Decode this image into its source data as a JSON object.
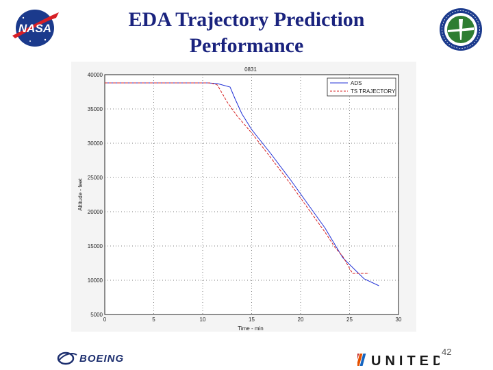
{
  "slide": {
    "title": "EDA Trajectory Prediction Performance",
    "page_number": "42"
  },
  "logos": {
    "nasa": "NASA",
    "boeing": "BOEING",
    "united": "UNITED"
  },
  "colors": {
    "title": "#1a237e",
    "ads_series": "#1f2fd6",
    "ts_series": "#d62020",
    "grid": "#555555"
  },
  "chart_data": {
    "type": "line",
    "title": "0831",
    "xlabel": "Time - min",
    "ylabel": "Altitude - feet",
    "xlim": [
      0,
      30
    ],
    "ylim": [
      5000,
      40000
    ],
    "xticks": [
      0,
      5,
      10,
      15,
      20,
      25,
      30
    ],
    "yticks": [
      5000,
      10000,
      15000,
      20000,
      25000,
      30000,
      35000,
      40000
    ],
    "grid": true,
    "legend_position": "top-right",
    "series": [
      {
        "name": "ADS",
        "color": "#1f2fd6",
        "style": "solid",
        "points": [
          [
            0,
            38800
          ],
          [
            10.5,
            38800
          ],
          [
            11.5,
            38700
          ],
          [
            12.8,
            38200
          ],
          [
            13.3,
            36500
          ],
          [
            14.0,
            34300
          ],
          [
            15.0,
            32000
          ],
          [
            17.0,
            28400
          ],
          [
            19.0,
            24600
          ],
          [
            21.0,
            20600
          ],
          [
            22.5,
            17600
          ],
          [
            23.5,
            15200
          ],
          [
            24.3,
            13300
          ],
          [
            25.5,
            11600
          ],
          [
            26.5,
            10200
          ],
          [
            28.0,
            9200
          ]
        ]
      },
      {
        "name": "TS TRAJECTORY",
        "color": "#d62020",
        "style": "dashed",
        "points": [
          [
            0,
            38800
          ],
          [
            10.8,
            38800
          ],
          [
            11.5,
            38500
          ],
          [
            12.5,
            36000
          ],
          [
            13.5,
            34000
          ],
          [
            15.0,
            31500
          ],
          [
            17.0,
            27800
          ],
          [
            19.0,
            24000
          ],
          [
            21.0,
            20000
          ],
          [
            22.5,
            17000
          ],
          [
            23.5,
            14800
          ],
          [
            24.3,
            13500
          ],
          [
            25.3,
            11000
          ],
          [
            26.5,
            11000
          ],
          [
            27.0,
            11000
          ]
        ]
      }
    ]
  }
}
